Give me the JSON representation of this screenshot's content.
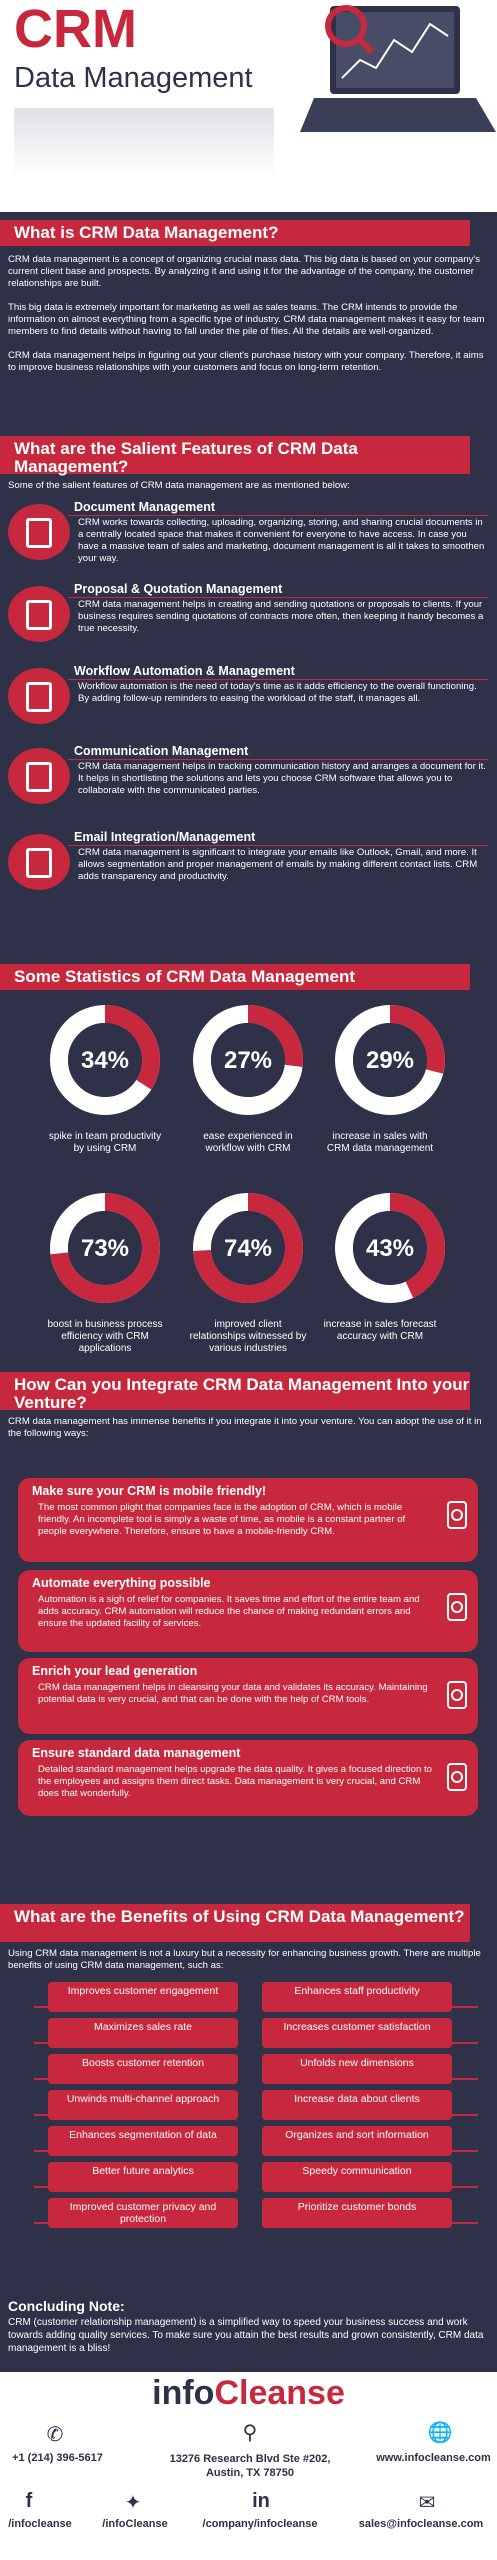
{
  "hero": {
    "title": "CRM",
    "subtitle": "Data Management"
  },
  "what": {
    "heading": "What is CRM Data Management?",
    "p1": "CRM data management is a concept of organizing crucial mass data. This big data is based on your company's current client base and prospects. By analyzing it and using it for the advantage of the company, the customer relationships are built.",
    "p2": "This big data is extremely important for marketing as well as sales teams. The CRM intends to provide the information on almost everything from a specific type of industry. CRM data management makes it easy for team members to find details without having to fall under the pile of files. All the details are well-organized.",
    "p3": "CRM data management helps in figuring out your client's purchase history with your company. Therefore, it aims to improve business relationships with your customers and focus on long-term retention."
  },
  "features": {
    "heading": "What are the Salient Features of CRM Data Management?",
    "intro": "Some of the salient features of CRM data management are as mentioned below:",
    "items": [
      {
        "title": "Document Management",
        "text": "CRM works towards collecting, uploading, organizing, storing, and sharing crucial documents in a centrally located space that makes it convenient for everyone to have access. In case you have a massive team of sales and marketing, document management is all it takes to smoothen your way.",
        "icon": "document-icon"
      },
      {
        "title": "Proposal & Quotation Management",
        "text": "CRM data management helps in creating and sending quotations or proposals to clients. If your business requires sending quotations of contracts more often, then keeping it handy becomes a true necessity.",
        "icon": "proposal-icon"
      },
      {
        "title": "Workflow Automation & Management",
        "text": "Workflow automation is the need of today's time as it adds efficiency to the overall functioning. By adding follow-up reminders to easing the workload of the staff, it manages all.",
        "icon": "workflow-icon"
      },
      {
        "title": "Communication Management",
        "text": "CRM data management helps in tracking communication history and arranges a document for it. It helps in shortlisting the solutions and lets you choose CRM software that allows you to collaborate with the communicated parties.",
        "icon": "chat-icon"
      },
      {
        "title": "Email Integration/Management",
        "text": "CRM data management is significant to integrate your emails like Outlook, Gmail, and more. It allows segmentation and proper management of emails by making different contact lists. CRM adds transparency and productivity.",
        "icon": "email-icon"
      }
    ]
  },
  "stats": {
    "heading": "Some Statistics of CRM Data Management",
    "items": [
      {
        "value": "34%",
        "pct": 34,
        "label": "spike in team productivity by using CRM"
      },
      {
        "value": "27%",
        "pct": 27,
        "label": "ease experienced in workflow with CRM"
      },
      {
        "value": "29%",
        "pct": 29,
        "label": "increase in sales with CRM data management"
      },
      {
        "value": "73%",
        "pct": 73,
        "label": "boost in business process efficiency with CRM applications"
      },
      {
        "value": "74%",
        "pct": 74,
        "label": "improved client relationships witnessed by various industries"
      },
      {
        "value": "43%",
        "pct": 43,
        "label": "increase in sales forecast accuracy with CRM"
      }
    ]
  },
  "integrate": {
    "heading": "How Can you Integrate CRM Data Management Into your Venture?",
    "intro": "CRM data management has immense benefits if you integrate it into your venture. You can adopt the use of it in the following ways:",
    "items": [
      {
        "title": "Make sure your CRM is mobile friendly!",
        "text": "The most common plight that companies face is the adoption of CRM, which is mobile friendly. An incomplete tool is simply a waste of time, as mobile is a constant partner of people everywhere. Therefore, ensure to have a mobile-friendly CRM.",
        "icon": "mobile-icon"
      },
      {
        "title": "Automate everything possible",
        "text": "Automation is a sigh of relief for companies. It saves time and effort of the entire team and adds accuracy. CRM automation will reduce the chance of making redundant errors and ensure the updated facility of services.",
        "icon": "gear-icon"
      },
      {
        "title": "Enrich your lead generation",
        "text": "CRM data management helps in cleansing your data and validates its accuracy. Maintaining potential data is very crucial, and that can be done with the help of CRM tools.",
        "icon": "funnel-icon"
      },
      {
        "title": "Ensure standard data management",
        "text": "Detailed standard management helps upgrade the data quality. It gives a focused direction to the employees and assigns them direct tasks. Data management is very crucial, and CRM does that wonderfully.",
        "icon": "settings-icon"
      }
    ]
  },
  "benefits": {
    "heading": "What are the Benefits of Using CRM Data Management?",
    "intro": "Using CRM data management is not a luxury but a necessity for enhancing business growth. There are multiple benefits of using CRM data management, such as:",
    "left": [
      "Improves customer engagement",
      "Maximizes sales rate",
      "Boosts customer retention",
      "Unwinds multi-channel approach",
      "Enhances segmentation of data",
      "Better future analytics",
      "Improved customer privacy and protection"
    ],
    "right": [
      "Enhances staff productivity",
      "Increases customer satisfaction",
      "Unfolds new dimensions",
      "Increase data about clients",
      "Organizes and sort information",
      "Speedy communication",
      "Prioritize customer bonds"
    ]
  },
  "conclusion": {
    "heading": "Concluding Note:",
    "text": "CRM (customer relationship management) is a simplified way to speed your business success and work towards adding quality services. To make sure you attain the best results and grown consistently, CRM data management is a bliss!"
  },
  "footer": {
    "brand_a": "info",
    "brand_b": "Cleanse",
    "phone": "+1 (214) 396-5617",
    "address": "13276 Research Blvd Ste #202, Austin, TX 78750",
    "web": "www.infocleanse.com",
    "facebook": "/infocleanse",
    "twitter": "/infoCleanse",
    "linkedin": "/company/infocleanse",
    "email": "sales@infocleanse.com"
  },
  "colors": {
    "accent": "#c7283d",
    "navy": "#2e3147"
  }
}
